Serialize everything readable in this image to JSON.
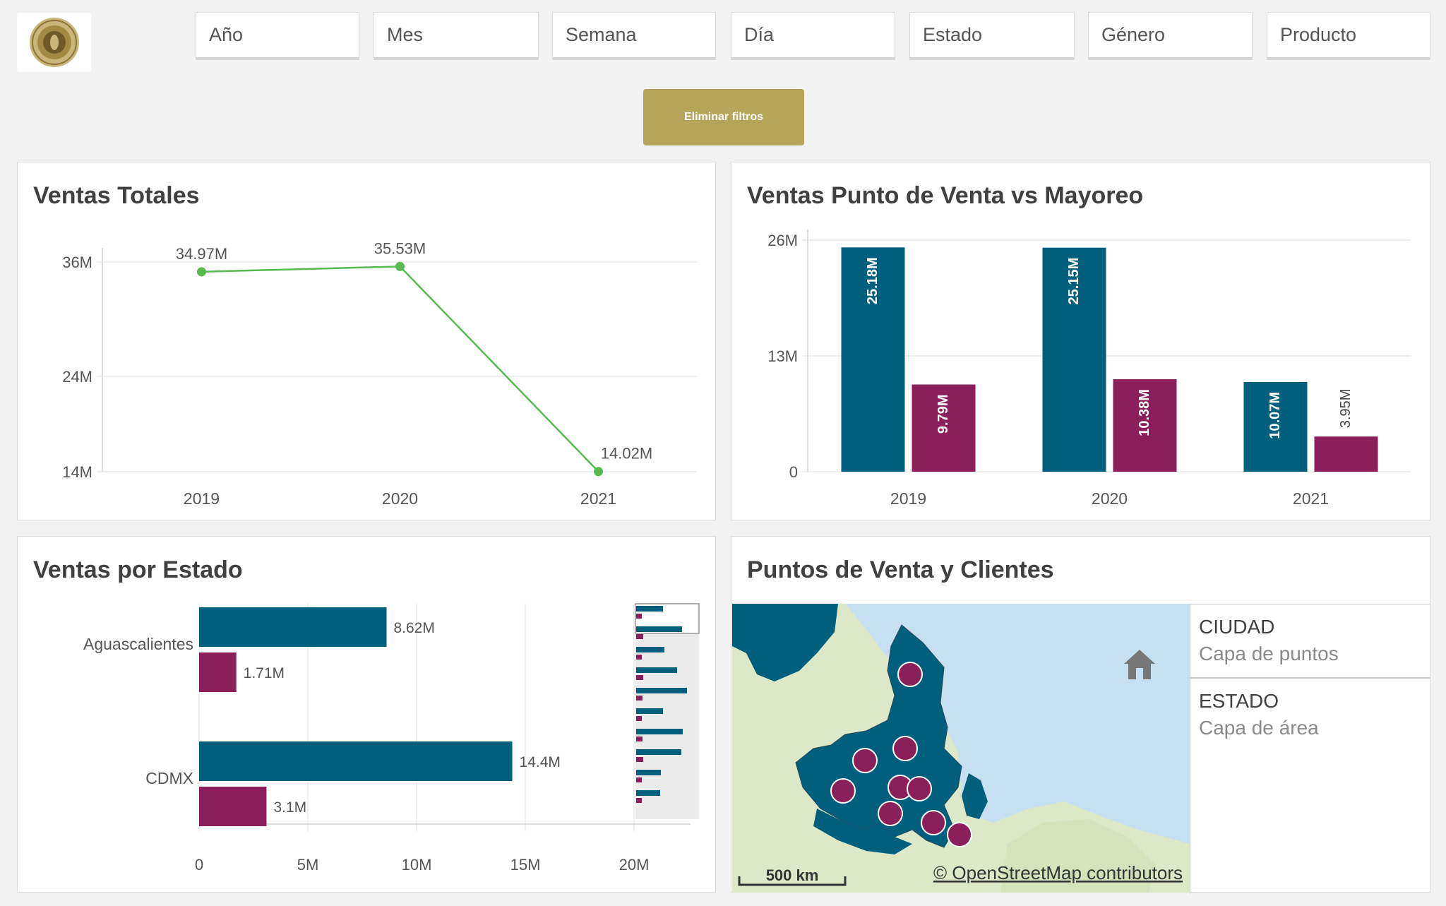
{
  "filters": [
    "Año",
    "Mes",
    "Semana",
    "Día",
    "Estado",
    "Género",
    "Producto"
  ],
  "clear_filters_label": "Eliminar filtros",
  "colors": {
    "teal": "#015f7e",
    "magenta": "#8b1f5c",
    "green": "#57b94f",
    "gold": "#b5a55b"
  },
  "charts": {
    "ventas_totales": {
      "title": "Ventas Totales",
      "chart_data": {
        "type": "line",
        "x": [
          "2019",
          "2020",
          "2021"
        ],
        "values": [
          34.97,
          35.53,
          14.02
        ],
        "data_labels": [
          "34.97M",
          "35.53M",
          "14.02M"
        ],
        "y_ticks": [
          "14M",
          "24M",
          "36M"
        ],
        "y_tick_values": [
          14,
          24,
          36
        ],
        "ylim": [
          14,
          36
        ],
        "xlabel": "",
        "ylabel": ""
      }
    },
    "punto_vs_mayoreo": {
      "title": "Ventas Punto de Venta vs Mayoreo",
      "chart_data": {
        "type": "bar",
        "categories": [
          "2019",
          "2020",
          "2021"
        ],
        "series": [
          {
            "values": [
              25.18,
              25.15,
              10.07
            ],
            "labels": [
              "25.18M",
              "25.15M",
              "10.07M"
            ]
          },
          {
            "values": [
              9.79,
              10.38,
              3.95
            ],
            "labels": [
              "9.79M",
              "10.38M",
              "3.95M"
            ]
          }
        ],
        "y_ticks": [
          "0",
          "13M",
          "26M"
        ],
        "y_tick_values": [
          0,
          13,
          26
        ],
        "ylim": [
          0,
          26
        ]
      }
    },
    "ventas_por_estado": {
      "title": "Ventas por Estado",
      "chart_data": {
        "type": "bar",
        "orientation": "horizontal",
        "categories": [
          "Aguascalientes",
          "CDMX"
        ],
        "series": [
          {
            "values": [
              8.62,
              14.4
            ],
            "labels": [
              "8.62M",
              "14.4M"
            ]
          },
          {
            "values": [
              1.71,
              3.1
            ],
            "labels": [
              "1.71M",
              "3.1M"
            ]
          }
        ],
        "x_ticks": [
          "0",
          "5M",
          "10M",
          "15M",
          "20M"
        ],
        "x_tick_values": [
          0,
          5,
          10,
          15,
          20
        ],
        "xlim": [
          0,
          20
        ]
      }
    }
  },
  "map": {
    "title": "Puntos de Venta y Clientes",
    "scale_label": "500 km",
    "attribution": "© OpenStreetMap contributors",
    "legend": [
      {
        "head": "CIUDAD",
        "sub": "Capa de puntos"
      },
      {
        "head": "ESTADO",
        "sub": "Capa de área"
      }
    ]
  }
}
